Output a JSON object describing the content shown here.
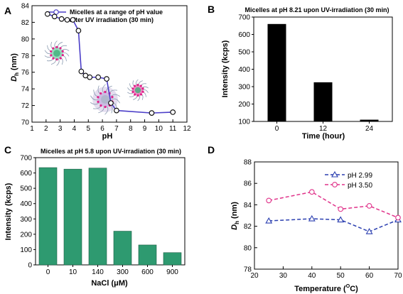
{
  "chart_data": [
    {
      "panel": "A",
      "type": "line",
      "legend": "Micelles at a range of pH value after UV irradiation (30 min)",
      "legend_line1": "Micelles at a range of pH value",
      "legend_line2": "after UV irradiation (30 min)",
      "xlabel": "pH",
      "ylabel": "Dh (nm)",
      "ylabel_main": "D",
      "ylabel_sub": "h",
      "ylabel_unit": " (nm)",
      "xlim": [
        1,
        12
      ],
      "ylim": [
        70,
        84
      ],
      "xticks": [
        1,
        2,
        3,
        4,
        5,
        6,
        7,
        8,
        9,
        10,
        11,
        12
      ],
      "yticks": [
        70,
        72,
        74,
        76,
        78,
        80,
        82,
        84
      ],
      "x": [
        2.1,
        2.6,
        3.1,
        3.5,
        3.9,
        4.3,
        4.5,
        4.8,
        5.1,
        5.7,
        6.3,
        6.6,
        7.0,
        9.5,
        11.0
      ],
      "y": [
        83.0,
        82.7,
        82.4,
        82.3,
        82.3,
        81.0,
        76.1,
        75.6,
        75.4,
        75.4,
        75.2,
        72.3,
        71.4,
        71.1,
        71.2
      ],
      "color": "#4b3ec8"
    },
    {
      "panel": "B",
      "type": "bar",
      "title": "Micelles at pH 8.21 upon UV-irradiation (30 min)",
      "categories": [
        "0",
        "12",
        "24"
      ],
      "values": [
        660,
        325,
        110
      ],
      "xlabel": "Time (hour)",
      "ylabel": "Intensity (kcps)",
      "ylim": [
        100,
        700
      ],
      "yticks": [
        100,
        200,
        300,
        400,
        500,
        600,
        700
      ],
      "color": "#000000"
    },
    {
      "panel": "C",
      "type": "bar",
      "title": "Micelles at pH 5.8 upon UV-irradiation (30 min)",
      "categories": [
        "0",
        "10",
        "140",
        "300",
        "600",
        "900"
      ],
      "values": [
        635,
        625,
        632,
        220,
        130,
        80
      ],
      "xlabel": "NaCl (μM)",
      "ylabel": "Intensity (kcps)",
      "ylim": [
        0,
        700
      ],
      "yticks": [
        0,
        100,
        200,
        300,
        400,
        500,
        600,
        700
      ],
      "color": "#2e9a70"
    },
    {
      "panel": "D",
      "type": "line",
      "xlabel_text": "Temperature (",
      "xlabel_sup": "O",
      "xlabel_end": "C)",
      "ylabel_main": "D",
      "ylabel_sub": "h",
      "ylabel_unit": " (nm)",
      "xlim": [
        20,
        70
      ],
      "ylim": [
        78,
        88
      ],
      "xticks": [
        20,
        30,
        40,
        50,
        60,
        70
      ],
      "yticks": [
        78,
        80,
        82,
        84,
        86,
        88
      ],
      "x": [
        25,
        40,
        50,
        60,
        70
      ],
      "series": [
        {
          "name": "pH 2.99",
          "values": [
            82.5,
            82.7,
            82.6,
            81.5,
            82.6
          ],
          "color": "#2b3fb0",
          "marker": "triangle"
        },
        {
          "name": "pH 3.50",
          "values": [
            84.4,
            85.2,
            83.6,
            83.9,
            82.8
          ],
          "color": "#e0338a",
          "marker": "circle"
        }
      ]
    }
  ]
}
